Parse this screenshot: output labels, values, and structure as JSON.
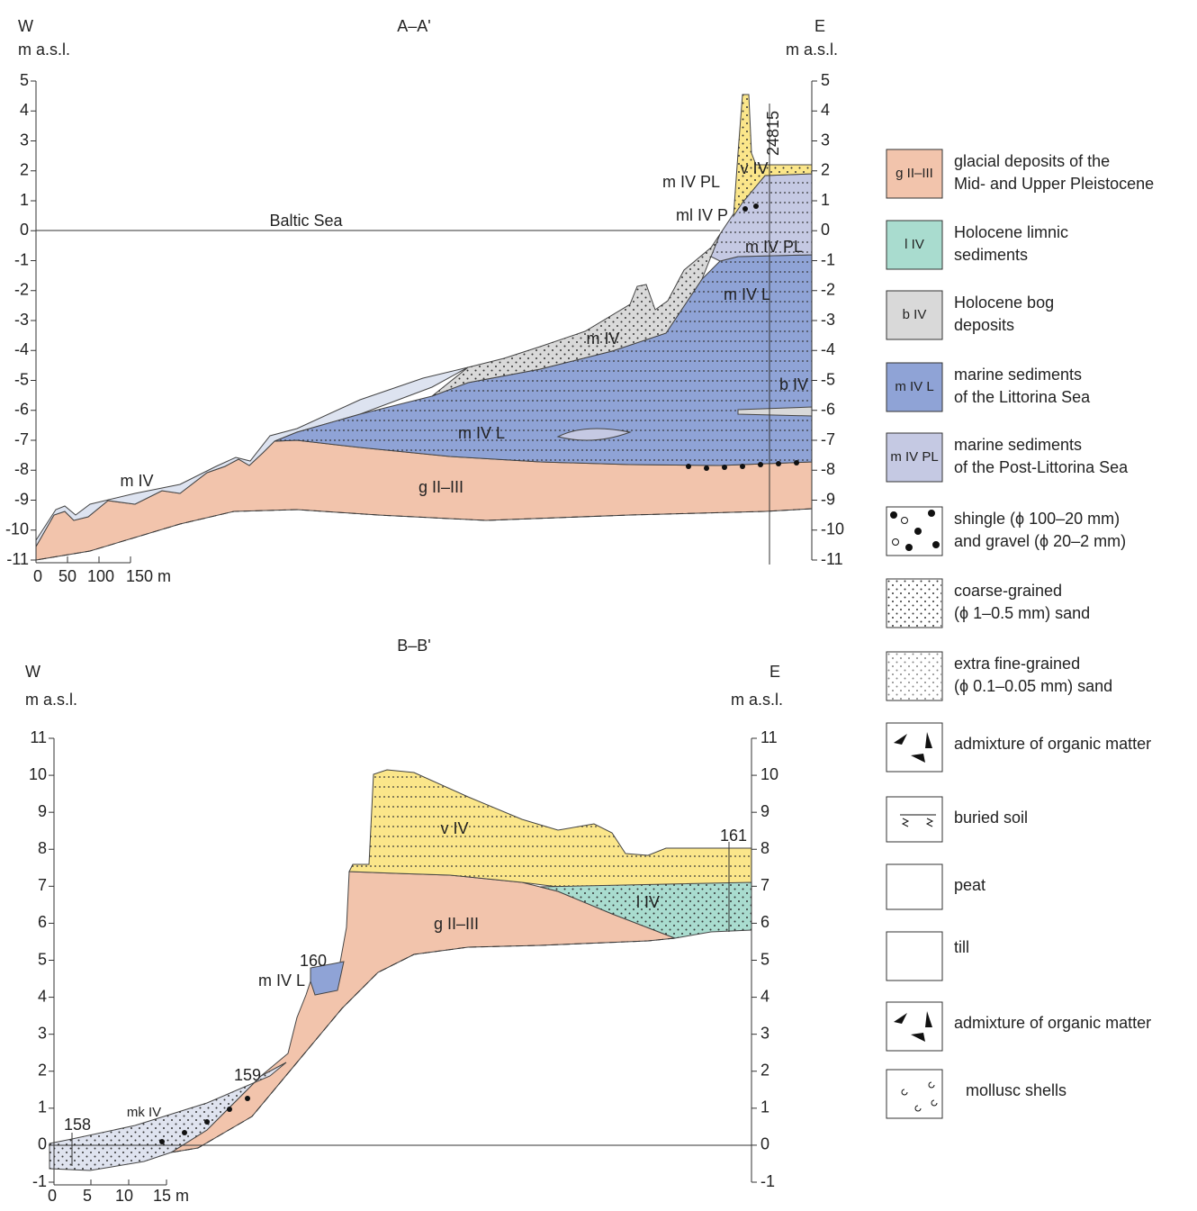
{
  "sections": [
    {
      "title": "A–A'",
      "west": "W",
      "east": "E",
      "left_unit": "m a.s.l.",
      "right_unit": "m a.s.l.",
      "ticks": [
        5,
        4,
        3,
        2,
        1,
        0,
        -1,
        -2,
        -3,
        -4,
        -5,
        -6,
        -7,
        -8,
        -9,
        -10,
        -11
      ],
      "scale": [
        "0",
        "50",
        "100",
        "150 m"
      ],
      "labels": [
        "Baltic Sea",
        "v IV",
        "m IV PL",
        "ml IV P",
        "m IV PL",
        "m IV L",
        "m IV",
        "b IV",
        "m IV L",
        "m IV",
        "g II–III",
        "24815"
      ]
    },
    {
      "title": "B–B'",
      "west": "W",
      "east": "E",
      "left_unit": "m a.s.l.",
      "right_unit": "m a.s.l.",
      "ticks": [
        11,
        10,
        9,
        8,
        7,
        6,
        5,
        4,
        3,
        2,
        1,
        0,
        -1
      ],
      "scale": [
        "0",
        "5",
        "10",
        "15 m"
      ],
      "labels": [
        "v IV",
        "161",
        "l IV",
        "g II–III",
        "160",
        "m IV L",
        "159",
        "mk IV",
        "158"
      ]
    }
  ],
  "legend": [
    {
      "swatch": "g II–III",
      "lines": [
        "glacial deposits of the",
        "Mid- and Upper Pleistocene"
      ]
    },
    {
      "swatch": "l IV",
      "lines": [
        "Holocene limnic",
        "sediments"
      ]
    },
    {
      "swatch": "b IV",
      "lines": [
        "Holocene bog",
        "deposits"
      ]
    },
    {
      "swatch": "m IV L",
      "lines": [
        "marine sediments",
        "of the Littorina Sea"
      ]
    },
    {
      "swatch": "m IV PL",
      "lines": [
        "marine sediments",
        "of the Post-Littorina Sea"
      ]
    },
    {
      "lines": [
        "shingle (ϕ 100–20 mm)",
        "and gravel (ϕ 20–2 mm)"
      ]
    },
    {
      "lines": [
        "coarse-grained",
        "(ϕ 1–0.5 mm) sand"
      ]
    },
    {
      "lines": [
        "extra fine-grained",
        "(ϕ 0.1–0.05 mm) sand"
      ]
    },
    {
      "lines": [
        "admixture of organic matter"
      ]
    },
    {
      "lines": [
        "buried soil"
      ]
    },
    {
      "lines": [
        "peat"
      ]
    },
    {
      "lines": [
        "till"
      ]
    },
    {
      "lines": [
        "admixture of organic matter"
      ]
    },
    {
      "lines": [
        "mollusc shells"
      ]
    }
  ]
}
